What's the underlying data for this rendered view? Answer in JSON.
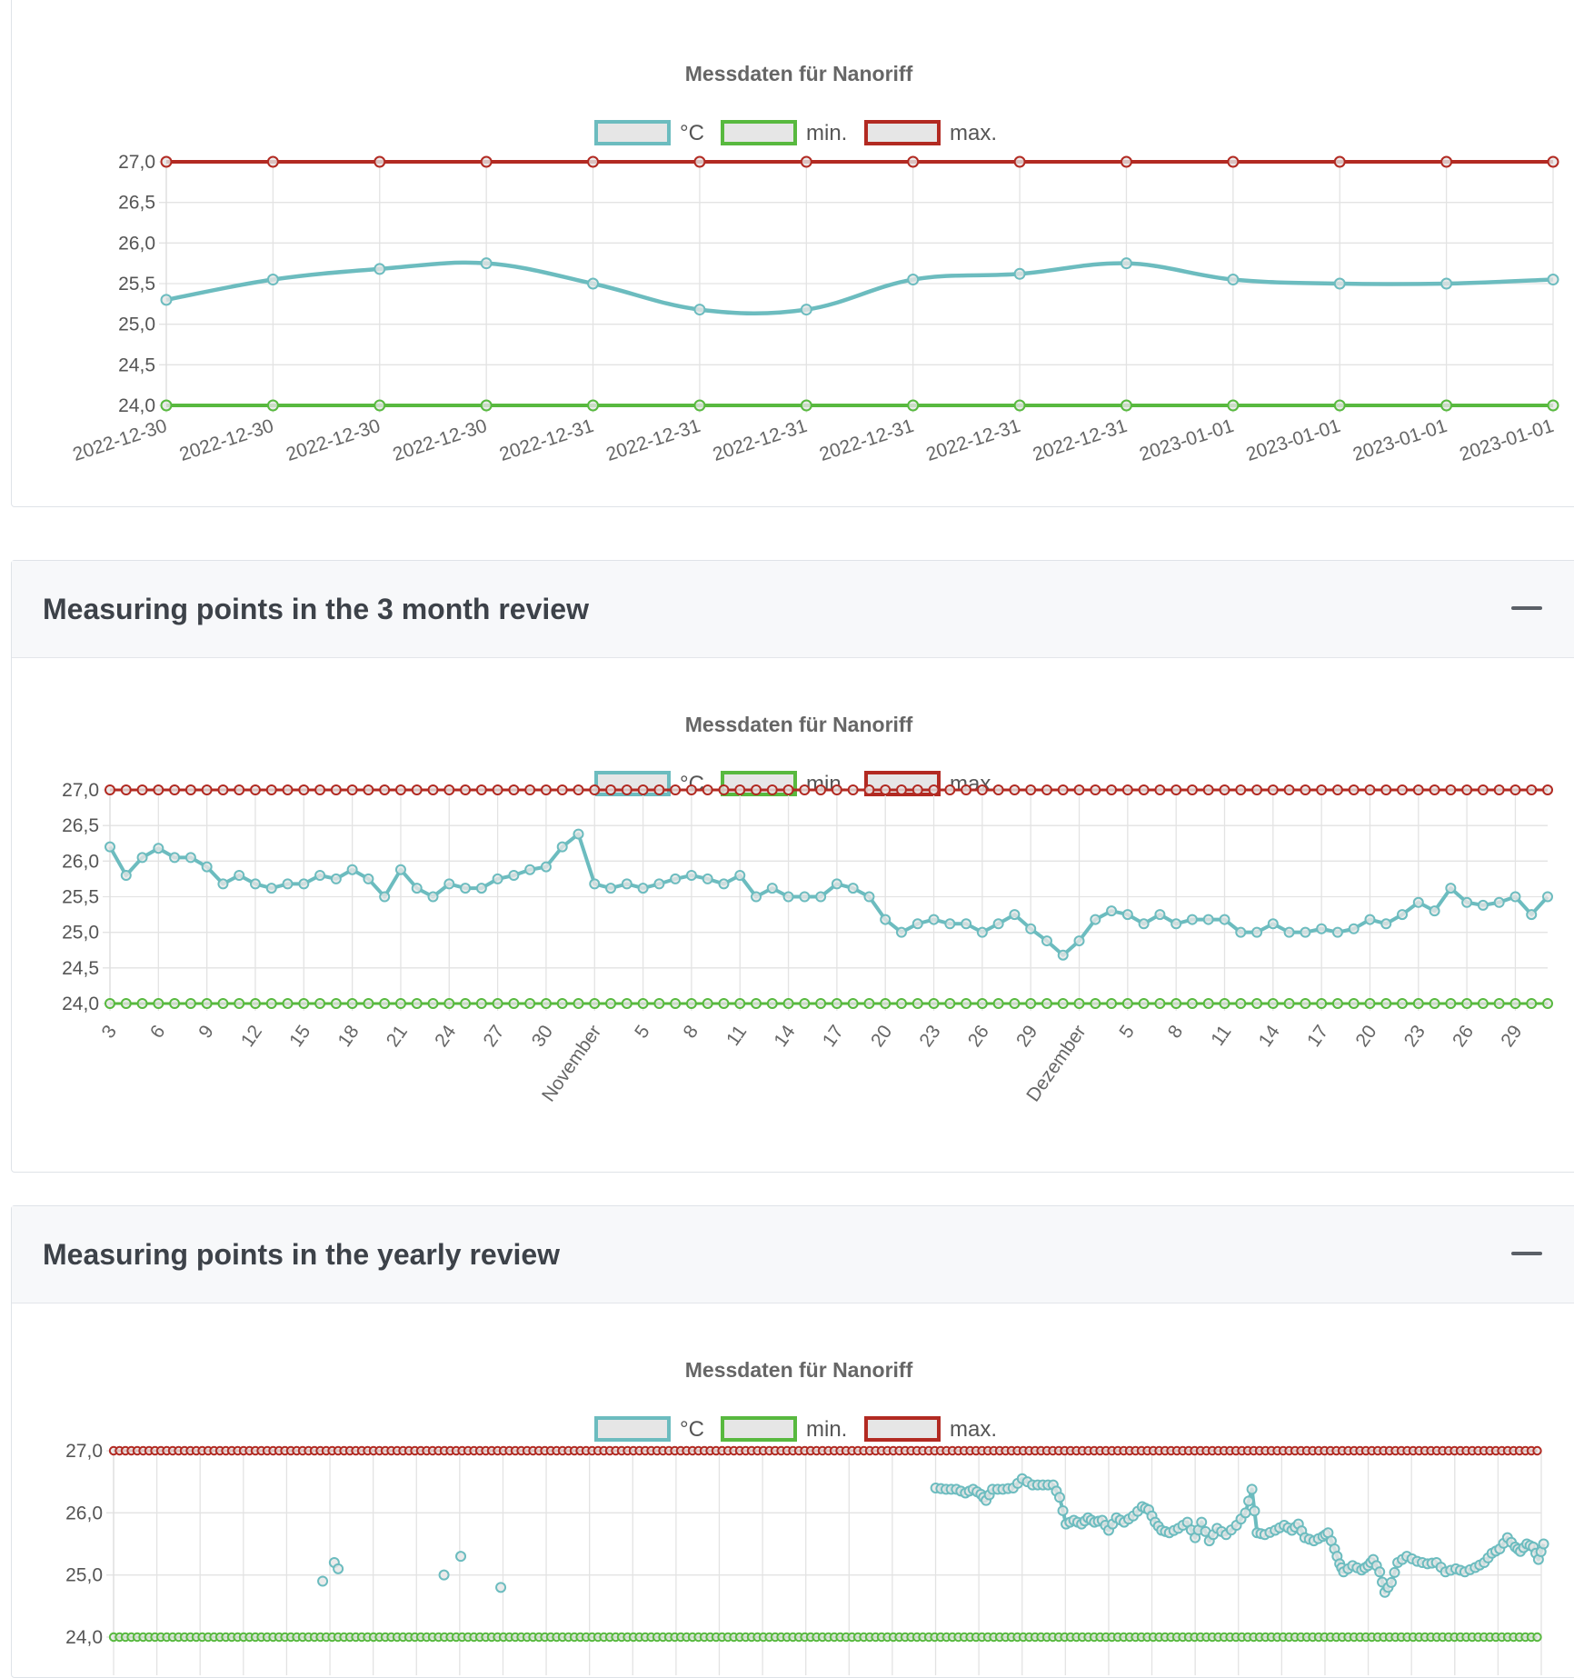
{
  "colors": {
    "temp": "#6cbcbf",
    "min": "#58b93f",
    "max": "#b22a22"
  },
  "legend": {
    "temp": "°C",
    "min": "min.",
    "max": "max."
  },
  "cards": [
    {
      "title": "",
      "collapse_icon": "minus-icon"
    },
    {
      "title": "Measuring points in the 3 month review",
      "collapse_icon": "minus-icon"
    },
    {
      "title": "Measuring points in the yearly review",
      "collapse_icon": "minus-icon"
    }
  ],
  "chart_data": [
    {
      "type": "line",
      "title": "Messdaten für Nanoriff",
      "x": [
        "2022-12-30",
        "2022-12-30",
        "2022-12-30",
        "2022-12-30",
        "2022-12-31",
        "2022-12-31",
        "2022-12-31",
        "2022-12-31",
        "2022-12-31",
        "2022-12-31",
        "2023-01-01",
        "2023-01-01",
        "2023-01-01",
        "2023-01-01"
      ],
      "series": [
        {
          "name": "°C",
          "values": [
            25.3,
            25.55,
            25.68,
            25.75,
            25.5,
            25.18,
            25.18,
            25.55,
            25.62,
            25.75,
            25.55,
            25.5,
            25.5,
            25.55
          ]
        },
        {
          "name": "min.",
          "values": [
            24,
            24,
            24,
            24,
            24,
            24,
            24,
            24,
            24,
            24,
            24,
            24,
            24,
            24
          ]
        },
        {
          "name": "max.",
          "values": [
            27,
            27,
            27,
            27,
            27,
            27,
            27,
            27,
            27,
            27,
            27,
            27,
            27,
            27
          ]
        }
      ],
      "ylim": [
        24,
        27
      ],
      "yticks": [
        "24,0",
        "24,5",
        "25,0",
        "25,5",
        "26,0",
        "26,5",
        "27,0"
      ],
      "grid": true,
      "legend_position": "top"
    },
    {
      "type": "line",
      "title": "Messdaten für Nanoriff",
      "x_ticks": [
        "3",
        "6",
        "9",
        "12",
        "15",
        "18",
        "21",
        "24",
        "27",
        "30",
        "November",
        "5",
        "8",
        "11",
        "14",
        "17",
        "20",
        "23",
        "26",
        "29",
        "Dezember",
        "5",
        "8",
        "11",
        "14",
        "17",
        "20",
        "23",
        "26",
        "29"
      ],
      "series": [
        {
          "name": "°C",
          "values": [
            26.2,
            25.8,
            26.05,
            26.18,
            26.05,
            26.05,
            25.92,
            25.68,
            25.8,
            25.68,
            25.62,
            25.68,
            25.68,
            25.8,
            25.75,
            25.88,
            25.75,
            25.5,
            25.88,
            25.62,
            25.5,
            25.68,
            25.62,
            25.62,
            25.75,
            25.8,
            25.88,
            25.92,
            26.2,
            26.38,
            25.68,
            25.62,
            25.68,
            25.62,
            25.68,
            25.75,
            25.8,
            25.75,
            25.68,
            25.8,
            25.5,
            25.62,
            25.5,
            25.5,
            25.5,
            25.68,
            25.62,
            25.5,
            25.18,
            25.0,
            25.12,
            25.18,
            25.12,
            25.12,
            25.0,
            25.12,
            25.25,
            25.05,
            24.88,
            24.68,
            24.88,
            25.18,
            25.3,
            25.25,
            25.12,
            25.25,
            25.12,
            25.18,
            25.18,
            25.18,
            25.0,
            25.0,
            25.12,
            25.0,
            25.0,
            25.05,
            25.0,
            25.05,
            25.18,
            25.12,
            25.25,
            25.42,
            25.3,
            25.62,
            25.42,
            25.38,
            25.42,
            25.5,
            25.25,
            25.5
          ]
        },
        {
          "name": "min.",
          "constant": 24
        },
        {
          "name": "max.",
          "constant": 27
        }
      ],
      "ylim": [
        24,
        27
      ],
      "yticks": [
        "24,0",
        "24,5",
        "25,0",
        "25,5",
        "26,0",
        "26,5",
        "27,0"
      ],
      "grid": true,
      "legend_position": "top"
    },
    {
      "type": "line",
      "title": "Messdaten für Nanoriff",
      "series": [
        {
          "name": "°C",
          "points": [
            [
              0.162,
              24.9
            ],
            [
              0.171,
              25.2
            ],
            [
              0.174,
              25.1
            ],
            [
              0.256,
              25.0
            ],
            [
              0.269,
              25.3
            ],
            [
              0.3,
              24.8
            ],
            [
              0.637,
              26.4
            ],
            [
              0.645,
              26.38
            ],
            [
              0.653,
              26.38
            ],
            [
              0.66,
              26.32
            ],
            [
              0.666,
              26.38
            ],
            [
              0.672,
              26.3
            ],
            [
              0.676,
              26.2
            ],
            [
              0.681,
              26.38
            ],
            [
              0.689,
              26.38
            ],
            [
              0.697,
              26.4
            ],
            [
              0.704,
              26.55
            ],
            [
              0.712,
              26.45
            ],
            [
              0.72,
              26.45
            ],
            [
              0.728,
              26.45
            ],
            [
              0.733,
              26.25
            ],
            [
              0.738,
              25.82
            ],
            [
              0.744,
              25.88
            ],
            [
              0.75,
              25.82
            ],
            [
              0.755,
              25.92
            ],
            [
              0.76,
              25.85
            ],
            [
              0.766,
              25.88
            ],
            [
              0.771,
              25.72
            ],
            [
              0.777,
              25.92
            ],
            [
              0.783,
              25.85
            ],
            [
              0.79,
              25.95
            ],
            [
              0.797,
              26.1
            ],
            [
              0.802,
              26.05
            ],
            [
              0.807,
              25.85
            ],
            [
              0.812,
              25.72
            ],
            [
              0.818,
              25.68
            ],
            [
              0.825,
              25.75
            ],
            [
              0.832,
              25.85
            ],
            [
              0.838,
              25.6
            ],
            [
              0.843,
              25.85
            ],
            [
              0.849,
              25.55
            ],
            [
              0.855,
              25.75
            ],
            [
              0.862,
              25.65
            ],
            [
              0.87,
              25.8
            ],
            [
              0.877,
              26.0
            ],
            [
              0.882,
              26.38
            ],
            [
              0.886,
              25.68
            ],
            [
              0.892,
              25.65
            ],
            [
              0.9,
              25.72
            ],
            [
              0.907,
              25.8
            ],
            [
              0.913,
              25.72
            ],
            [
              0.918,
              25.82
            ],
            [
              0.923,
              25.6
            ],
            [
              0.93,
              25.55
            ],
            [
              0.937,
              25.62
            ],
            [
              0.941,
              25.68
            ],
            [
              0.946,
              25.42
            ],
            [
              0.95,
              25.18
            ],
            [
              0.953,
              25.05
            ],
            [
              0.96,
              25.15
            ],
            [
              0.967,
              25.08
            ],
            [
              0.972,
              25.15
            ],
            [
              0.976,
              25.25
            ],
            [
              0.981,
              25.05
            ],
            [
              0.985,
              24.72
            ],
            [
              0.99,
              24.88
            ],
            [
              0.995,
              25.2
            ],
            [
              1.002,
              25.3
            ],
            [
              1.01,
              25.22
            ],
            [
              1.018,
              25.18
            ],
            [
              1.025,
              25.2
            ],
            [
              1.032,
              25.05
            ],
            [
              1.04,
              25.1
            ],
            [
              1.047,
              25.05
            ],
            [
              1.055,
              25.12
            ],
            [
              1.062,
              25.2
            ],
            [
              1.068,
              25.35
            ],
            [
              1.074,
              25.42
            ],
            [
              1.08,
              25.6
            ],
            [
              1.086,
              25.45
            ],
            [
              1.09,
              25.38
            ],
            [
              1.095,
              25.5
            ],
            [
              1.1,
              25.45
            ],
            [
              1.104,
              25.25
            ],
            [
              1.108,
              25.5
            ]
          ]
        },
        {
          "name": "min.",
          "constant": 24
        },
        {
          "name": "max.",
          "constant": 27
        }
      ],
      "ylim": [
        24,
        27
      ],
      "yticks": [
        "24,0",
        "25,0",
        "26,0",
        "27,0"
      ],
      "grid": true,
      "legend_position": "top"
    }
  ]
}
